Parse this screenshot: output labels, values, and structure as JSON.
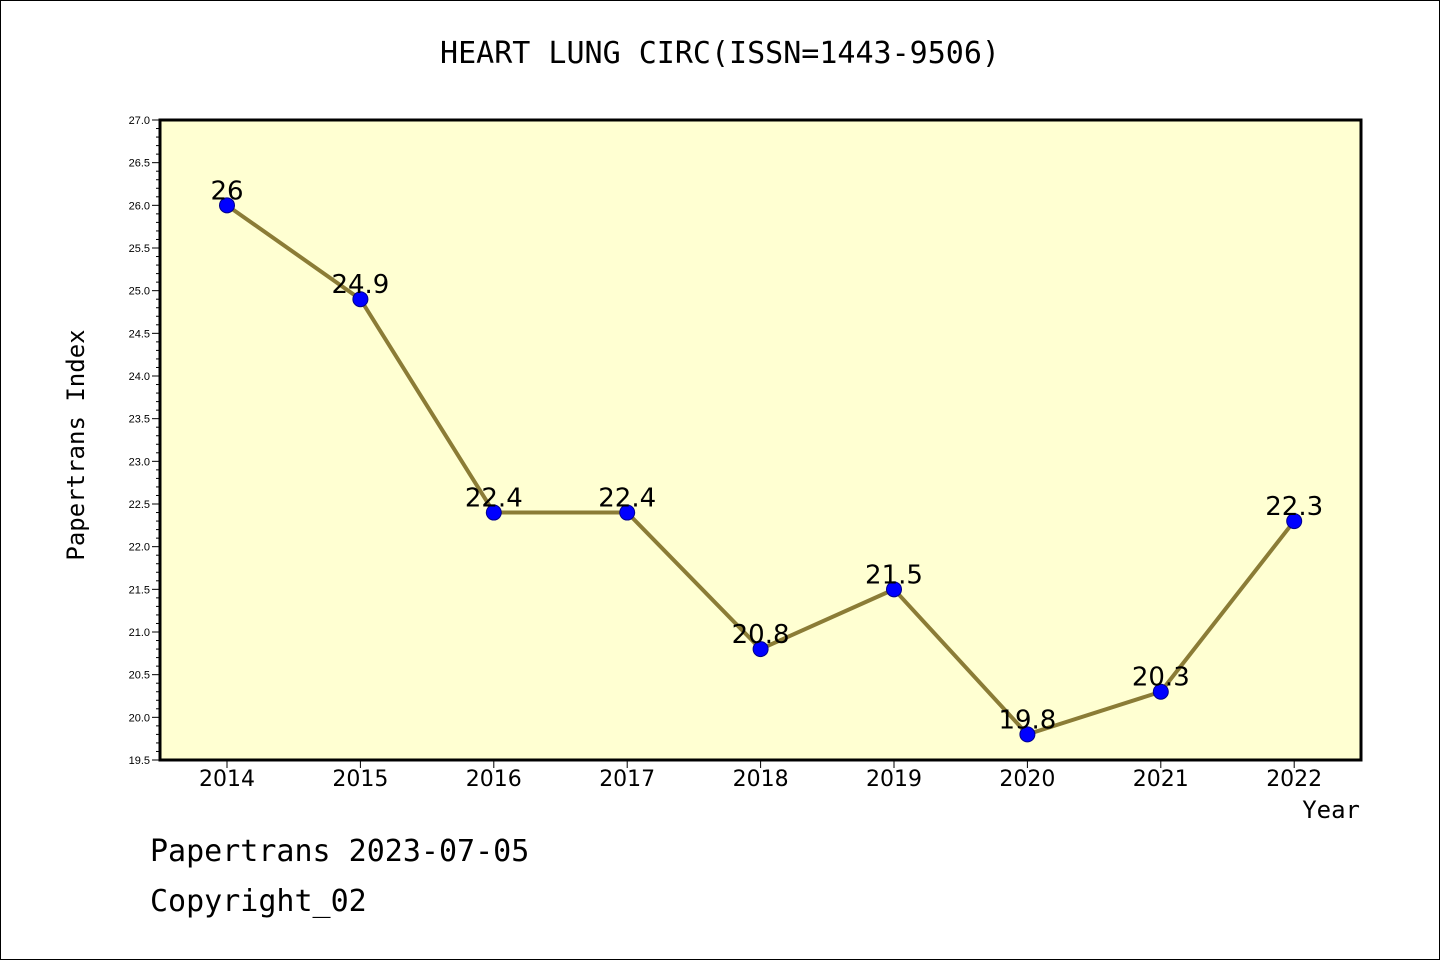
{
  "chart_data": {
    "type": "line",
    "title": "HEART LUNG CIRC(ISSN=1443-9506)",
    "xlabel": "Year",
    "ylabel": "Papertrans Index",
    "categories": [
      "2014",
      "2015",
      "2016",
      "2017",
      "2018",
      "2019",
      "2020",
      "2021",
      "2022"
    ],
    "values": [
      26,
      24.9,
      22.4,
      22.4,
      20.8,
      21.5,
      19.8,
      20.3,
      22.3
    ],
    "data_labels": [
      "26",
      "24.9",
      "22.4",
      "22.4",
      "20.8",
      "21.5",
      "19.8",
      "20.3",
      "22.3"
    ],
    "ylim": [
      19.5,
      27.0
    ],
    "yticks": [
      "19.5",
      "20.0",
      "20.5",
      "21.0",
      "21.5",
      "22.0",
      "22.5",
      "23.0",
      "23.5",
      "24.0",
      "24.5",
      "25.0",
      "25.5",
      "26.0",
      "26.5",
      "27.0"
    ],
    "grid": false,
    "colors": {
      "plot_background": "#ffffd2",
      "line": "#8b7c36",
      "marker": "#0000ff",
      "marker_edge": "#00008b"
    }
  },
  "footer": {
    "line1": "Papertrans 2023-07-05",
    "line2": "Copyright_02"
  }
}
